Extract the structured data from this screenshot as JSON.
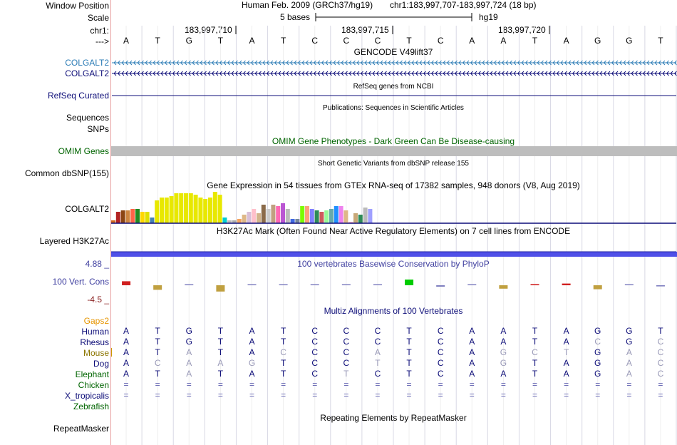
{
  "header": {
    "window_position_label": "Window Position",
    "scale_label": "Scale",
    "chr_label": "chr1:",
    "arrow_label": "--->",
    "assembly": "Human Feb. 2009 (GRCh37/hg19)",
    "position": "chr1:183,997,707-183,997,724 (18 bp)",
    "scale_text": "5 bases",
    "db": "hg19",
    "coords": [
      "183,997,710",
      "183,997,715",
      "183,997,720"
    ]
  },
  "bases": [
    "A",
    "T",
    "G",
    "T",
    "A",
    "T",
    "C",
    "C",
    "C",
    "T",
    "C",
    "A",
    "A",
    "T",
    "A",
    "G",
    "G",
    "T"
  ],
  "tracks": {
    "gencode": {
      "title": "GENCODE V49lift37",
      "genes": [
        "COLGALT2",
        "COLGALT2"
      ],
      "colors": [
        "#2a7bb5",
        "#0c0c78"
      ]
    },
    "refseq": {
      "title": "RefSeq genes from NCBI",
      "label": "RefSeq Curated"
    },
    "pubs": {
      "title": "Publications: Sequences in Scientific Articles",
      "labels": [
        "Sequences",
        "SNPs"
      ]
    },
    "omim": {
      "title": "OMIM Gene Phenotypes - Dark Green Can Be Disease-causing",
      "label": "OMIM Genes",
      "color": "#006400"
    },
    "dbsnp": {
      "title": "Short Genetic Variants from dbSNP release 155",
      "label": "Common dbSNP(155)"
    },
    "gtex": {
      "title": "Gene Expression in 54 tissues from GTEx RNA-seq of 17382 samples, 948 donors (V8, Aug 2019)",
      "label": "COLGALT2"
    },
    "h3k27ac": {
      "title": "H3K27Ac Mark (Often Found Near Active Regulatory Elements) on 7 cell lines from ENCODE",
      "label": "Layered H3K27Ac"
    },
    "phylop": {
      "title": "100 vertebrates Basewise Conservation by PhyloP",
      "label": "100 Vert. Cons",
      "max": "4.88 _",
      "min": "-4.5 _",
      "color": "#4040a0"
    },
    "multiz": {
      "title": "Multiz Alignments of 100 Vertebrates",
      "gaps_label": "Gaps2",
      "species": [
        {
          "name": "Human",
          "color": "#0c0c78",
          "seq": [
            "A",
            "T",
            "G",
            "T",
            "A",
            "T",
            "C",
            "C",
            "C",
            "T",
            "C",
            "A",
            "A",
            "T",
            "A",
            "G",
            "G",
            "T"
          ]
        },
        {
          "name": "Rhesus",
          "color": "#0c0c78",
          "seq": [
            "A",
            "T",
            "G",
            "T",
            "A",
            "T",
            "C",
            "C",
            "C",
            "T",
            "C",
            "A",
            "A",
            "T",
            "A",
            "C",
            "G",
            "C"
          ]
        },
        {
          "name": "Mouse",
          "color": "#8b7500",
          "seq": [
            "A",
            "T",
            "A",
            "T",
            "A",
            "C",
            "C",
            "C",
            "A",
            "T",
            "C",
            "A",
            "G",
            "C",
            "T",
            "G",
            "A",
            "C"
          ]
        },
        {
          "name": "Dog",
          "color": "#0c0c78",
          "seq": [
            "A",
            "C",
            "A",
            "A",
            "G",
            "T",
            "C",
            "C",
            "T",
            "T",
            "C",
            "A",
            "G",
            "T",
            "A",
            "G",
            "A",
            "C"
          ]
        },
        {
          "name": "Elephant",
          "color": "#006400",
          "seq": [
            "A",
            "T",
            "A",
            "T",
            "A",
            "T",
            "C",
            "T",
            "C",
            "T",
            "C",
            "A",
            "A",
            "T",
            "A",
            "G",
            "A",
            "C"
          ]
        },
        {
          "name": "Chicken",
          "color": "#006400",
          "seq": [
            "=",
            "=",
            "=",
            "=",
            "=",
            "=",
            "=",
            "=",
            "=",
            "=",
            "=",
            "=",
            "=",
            "=",
            "=",
            "=",
            "=",
            "="
          ]
        },
        {
          "name": "X_tropicalis",
          "color": "#0c0c78",
          "seq": [
            "=",
            "=",
            "=",
            "=",
            "=",
            "=",
            "=",
            "=",
            "=",
            "=",
            "=",
            "=",
            "=",
            "=",
            "=",
            "=",
            "=",
            "="
          ]
        },
        {
          "name": "Zebrafish",
          "color": "#006400",
          "seq": []
        }
      ]
    },
    "repeatmasker": {
      "title": "Repeating Elements by RepeatMasker",
      "label": "RepeatMasker"
    }
  },
  "gtex_values": [
    2,
    8,
    9,
    9,
    10,
    10,
    8,
    8,
    4,
    16,
    18,
    18,
    19,
    21,
    21,
    21,
    21,
    20,
    18,
    17,
    18,
    22,
    20,
    4,
    2,
    2,
    3,
    6,
    8,
    10,
    7,
    13,
    10,
    13,
    12,
    14,
    10,
    3,
    3,
    12,
    12,
    10,
    9,
    8,
    9,
    10,
    12,
    12,
    9,
    1,
    7,
    6,
    11,
    10
  ],
  "gtex_colors": [
    "#d2691e",
    "#b22222",
    "#8b4513",
    "#cd853f",
    "#ff6347",
    "#228b22",
    "#ffd700",
    "#e0e000",
    "#4682b4",
    "#e8e800",
    "#e8e800",
    "#e8e800",
    "#e8e800",
    "#e8e800",
    "#e8e800",
    "#e8e800",
    "#e8e800",
    "#e8e800",
    "#e8e800",
    "#e8e800",
    "#e8e800",
    "#e8e800",
    "#e8e800",
    "#00ced1",
    "#bbbbbb",
    "#aaaaaa",
    "#f4a460",
    "#deb887",
    "#d8bfd8",
    "#ffc0cb",
    "#d2b48c",
    "#8b6b4a",
    "#cccccc",
    "#c0a080",
    "#ff69b4",
    "#ba55d3",
    "#bbbbbb",
    "#4169e1",
    "#778899",
    "#7cfc00",
    "#ffa07a",
    "#8080ff",
    "#2e8b57",
    "#cd5c5c",
    "#98fb98",
    "#66aaaa",
    "#1e90ff",
    "#ee82ee",
    "#deb887",
    "#ffb6c1",
    "#c8a878",
    "#2e8b57",
    "#bbbbbb",
    "#a0a0ff"
  ],
  "conservation": [
    1.4,
    -1.6,
    0.2,
    -2.2,
    0.1,
    0.1,
    0.1,
    0.1,
    0.2,
    2.0,
    -0.5,
    0.1,
    -1.2,
    0.4,
    0.6,
    -1.4,
    0.1,
    -0.4
  ]
}
